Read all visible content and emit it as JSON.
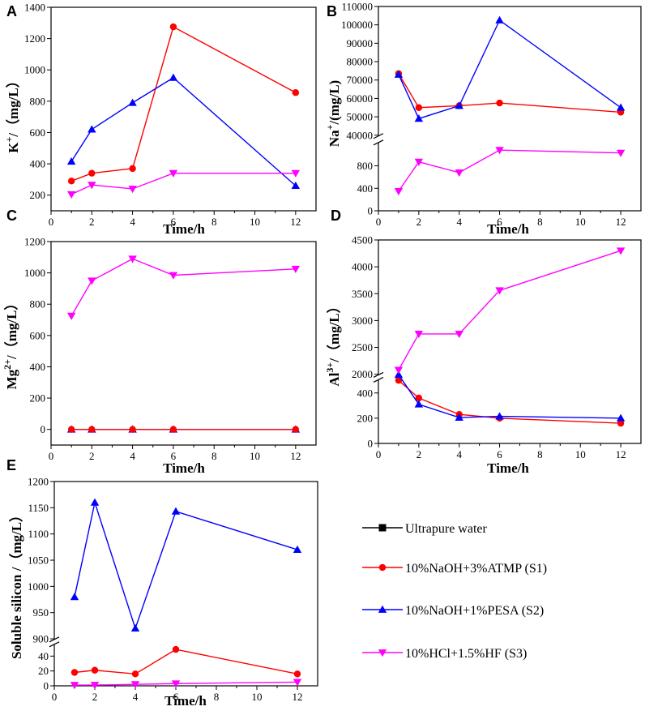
{
  "colors": {
    "water": "#000000",
    "s1": "#ff0000",
    "s2": "#0000ff",
    "s3": "#ff00ff"
  },
  "legend": [
    {
      "key": "water",
      "label": "Ultrapure water",
      "marker": "square"
    },
    {
      "key": "s1",
      "label": "10%NaOH+3%ATMP  (S1)",
      "marker": "circle"
    },
    {
      "key": "s2",
      "label": "10%NaOH+1%PESA    (S2)",
      "marker": "triangle-up"
    },
    {
      "key": "s3",
      "label": "10%HCl+1.5%HF    (S3)",
      "marker": "triangle-down"
    }
  ],
  "chart_data": [
    {
      "panel": "A",
      "type": "line",
      "xlabel": "Time/h",
      "ylabel": "K+/（mg/L）",
      "ylabel_parts": {
        "base": "K",
        "sup": "+",
        "rest": "/（mg/L）"
      },
      "xlim": [
        0,
        13
      ],
      "xticks": [
        0,
        2,
        4,
        6,
        8,
        10,
        12
      ],
      "ylim": [
        100,
        1400
      ],
      "yticks": [
        200,
        400,
        600,
        800,
        1000,
        1200,
        1400
      ],
      "x": [
        1,
        2,
        4,
        6,
        12
      ],
      "series": [
        {
          "key": "s1",
          "values": [
            290,
            340,
            370,
            1275,
            855
          ]
        },
        {
          "key": "s2",
          "values": [
            415,
            620,
            790,
            950,
            260
          ]
        },
        {
          "key": "s3",
          "values": [
            205,
            265,
            240,
            340,
            340
          ]
        }
      ]
    },
    {
      "panel": "B",
      "type": "line",
      "xlabel": "Time/h",
      "ylabel": "Na+/(mg/L)",
      "ylabel_parts": {
        "base": "Na",
        "sup": "+",
        "rest": "/(mg/L)"
      },
      "xlim": [
        0,
        13
      ],
      "xticks": [
        0,
        2,
        4,
        6,
        8,
        10,
        12
      ],
      "breaks": [
        {
          "range": [
            0,
            1200
          ],
          "ticks": [
            0,
            400,
            800
          ],
          "frac": [
            0,
            0.33
          ]
        },
        {
          "range": [
            40000,
            110000
          ],
          "ticks": [
            40000,
            50000,
            60000,
            70000,
            80000,
            90000,
            100000,
            110000
          ],
          "frac": [
            0.37,
            1
          ]
        }
      ],
      "x": [
        1,
        2,
        4,
        6,
        12
      ],
      "series": [
        {
          "key": "s1",
          "values": [
            73500,
            55000,
            56000,
            57500,
            52500
          ]
        },
        {
          "key": "s2",
          "values": [
            73000,
            49000,
            56000,
            102500,
            55000
          ]
        },
        {
          "key": "s3",
          "values": [
            350,
            870,
            680,
            1080,
            1030
          ]
        }
      ]
    },
    {
      "panel": "C",
      "type": "line",
      "xlabel": "Time/h",
      "ylabel": "Mg2+/（mg/L）",
      "ylabel_parts": {
        "base": "Mg",
        "sup": "2+",
        "rest": "/（mg/L）"
      },
      "xlim": [
        0,
        13
      ],
      "xticks": [
        0,
        2,
        4,
        6,
        8,
        10,
        12
      ],
      "ylim": [
        -100,
        1200
      ],
      "yticks": [
        0,
        200,
        400,
        600,
        800,
        1000,
        1200
      ],
      "x": [
        1,
        2,
        4,
        6,
        12
      ],
      "series": [
        {
          "key": "s2",
          "values": [
            0,
            0,
            0,
            0,
            0
          ]
        },
        {
          "key": "s1",
          "values": [
            0,
            0,
            0,
            0,
            0
          ]
        },
        {
          "key": "s3",
          "values": [
            725,
            950,
            1090,
            985,
            1025
          ]
        }
      ]
    },
    {
      "panel": "D",
      "type": "line",
      "xlabel": "Time/h",
      "ylabel": "Al3+/（mg/L）",
      "ylabel_parts": {
        "base": "Al",
        "sup": "3+",
        "rest": "/（mg/L）"
      },
      "xlim": [
        0,
        13
      ],
      "xticks": [
        0,
        2,
        4,
        6,
        8,
        10,
        12
      ],
      "breaks": [
        {
          "range": [
            0,
            500
          ],
          "ticks": [
            0,
            200,
            400
          ],
          "frac": [
            0,
            0.31
          ]
        },
        {
          "range": [
            2000,
            4500
          ],
          "ticks": [
            2000,
            2500,
            3000,
            3500,
            4000,
            4500
          ],
          "frac": [
            0.34,
            1
          ]
        }
      ],
      "x": [
        1,
        2,
        4,
        6,
        12
      ],
      "series": [
        {
          "key": "s1",
          "values": [
            500,
            360,
            230,
            200,
            160
          ]
        },
        {
          "key": "s2",
          "values": [
            545,
            310,
            205,
            215,
            200
          ]
        },
        {
          "key": "s3",
          "values": [
            2080,
            2750,
            2750,
            3560,
            4300
          ]
        }
      ]
    },
    {
      "panel": "E",
      "type": "line",
      "xlabel": "Time/h",
      "ylabel": "Soluble silicon /（mg/L）",
      "xlim": [
        0,
        13
      ],
      "xticks": [
        0,
        2,
        4,
        6,
        8,
        10,
        12
      ],
      "breaks": [
        {
          "range": [
            0,
            55
          ],
          "ticks": [
            0,
            20,
            40
          ],
          "frac": [
            0,
            0.2
          ]
        },
        {
          "range": [
            900,
            1200
          ],
          "ticks": [
            900,
            950,
            1000,
            1050,
            1100,
            1150,
            1200
          ],
          "frac": [
            0.23,
            1
          ]
        }
      ],
      "x": [
        1,
        2,
        4,
        6,
        12
      ],
      "series": [
        {
          "key": "s2",
          "values": [
            980,
            1160,
            920,
            1143,
            1070
          ]
        },
        {
          "key": "s1",
          "values": [
            18,
            21,
            16,
            49,
            16
          ]
        },
        {
          "key": "s3",
          "values": [
            1,
            1,
            2,
            3,
            5
          ]
        }
      ]
    }
  ]
}
